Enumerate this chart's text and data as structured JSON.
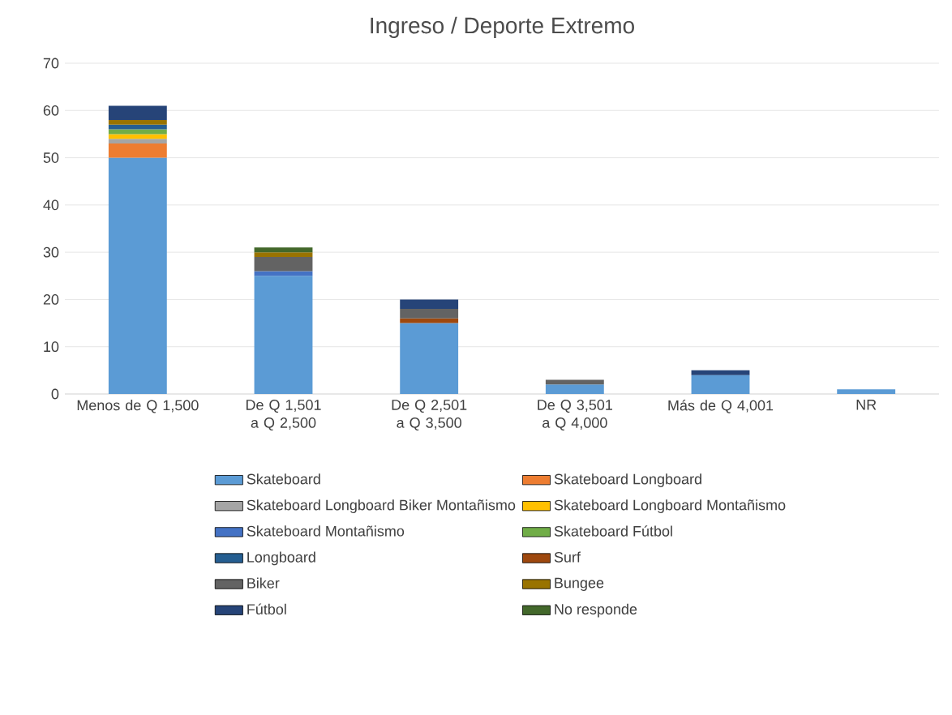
{
  "chart_data": {
    "type": "bar",
    "stacked": true,
    "title": "Ingreso / Deporte Extremo",
    "categories": [
      "Menos de Q 1,500",
      "De Q 1,501 a Q 2,500",
      "De Q 2,501 a Q 3,500",
      "De Q 3,501 a Q 4,000",
      "Más de Q 4,001",
      "NR"
    ],
    "ylim": [
      0,
      70
    ],
    "yticks": [
      0,
      10,
      20,
      30,
      40,
      50,
      60,
      70
    ],
    "grid": "y",
    "legend": "bottom",
    "series": [
      {
        "name": "Skateboard",
        "color": "#5b9bd5",
        "values": [
          50,
          25,
          15,
          2,
          4,
          1
        ]
      },
      {
        "name": "Skateboard Longboard",
        "color": "#ed7d31",
        "values": [
          3,
          null,
          null,
          null,
          null,
          null
        ]
      },
      {
        "name": "Skateboard Longboard Biker Montañismo",
        "color": "#a5a5a5",
        "values": [
          1,
          null,
          null,
          null,
          null,
          null
        ]
      },
      {
        "name": "Skateboard Longboard Montañismo",
        "color": "#ffc000",
        "values": [
          1,
          null,
          null,
          null,
          null,
          null
        ]
      },
      {
        "name": "Skateboard Montañismo",
        "color": "#4472c4",
        "values": [
          null,
          1,
          null,
          null,
          null,
          null
        ]
      },
      {
        "name": "Skateboard Fútbol",
        "color": "#70ad47",
        "values": [
          1,
          null,
          null,
          null,
          null,
          null
        ]
      },
      {
        "name": "Longboard",
        "color": "#255e91",
        "values": [
          1,
          null,
          null,
          null,
          null,
          null
        ]
      },
      {
        "name": "Surf",
        "color": "#9e480e",
        "values": [
          null,
          null,
          1,
          null,
          null,
          null
        ]
      },
      {
        "name": "Biker",
        "color": "#636363",
        "values": [
          null,
          3,
          2,
          1,
          null,
          null
        ]
      },
      {
        "name": "Bungee",
        "color": "#997300",
        "values": [
          1,
          1,
          null,
          null,
          null,
          null
        ]
      },
      {
        "name": "Fútbol",
        "color": "#264478",
        "values": [
          3,
          null,
          2,
          null,
          1,
          null
        ]
      },
      {
        "name": "No responde",
        "color": "#43682b",
        "values": [
          null,
          1,
          null,
          null,
          null,
          null
        ]
      }
    ]
  }
}
